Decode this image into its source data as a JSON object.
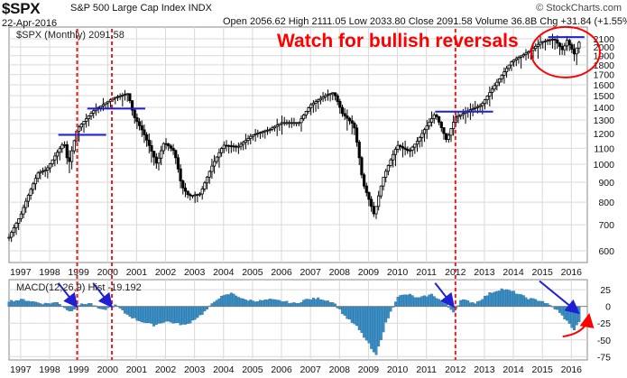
{
  "header": {
    "symbol": "$SPX",
    "index_name": "S&P 500 Large Cap Index INDX",
    "date": "22-Apr-2016",
    "quote": "Open 2056.62  High 2111.05  Low 2033.80  Close 2091.58  Volume 36.8B  Chg +31.84 (+1.55%) ▲",
    "watermark": "© StockCharts.com"
  },
  "legend": {
    "price": "$SPX (Monthly) 2091.58",
    "macd": "MACD(12,26,9) Hist -19.192"
  },
  "annotation": "Watch for bullish reversals",
  "colors": {
    "background": "#ffffff",
    "grid": "#d9d9d9",
    "candle": "#000000",
    "histogram": "#3b8fc4",
    "annotation": "#ff0000",
    "markers": "#1f1fd6",
    "reversal_lines": "#e02020"
  },
  "chart_data": [
    {
      "type": "candlestick",
      "title": "$SPX (Monthly) 2091.58",
      "yscale": "log",
      "ylim": [
        560,
        2250
      ],
      "yticks": [
        600,
        700,
        800,
        900,
        1000,
        1100,
        1200,
        1300,
        1400,
        1500,
        1600,
        1700,
        1800,
        1900,
        2000,
        2100
      ],
      "xlim": [
        1996.6,
        2016.55
      ],
      "xticks": [
        "1997",
        "1998",
        "1999",
        "2000",
        "2001",
        "2002",
        "2003",
        "2004",
        "2005",
        "2006",
        "2007",
        "2008",
        "2009",
        "2010",
        "2011",
        "2012",
        "2013",
        "2014",
        "2015",
        "2016"
      ],
      "path": [
        [
          1996.6,
          650
        ],
        [
          1997.0,
          740
        ],
        [
          1997.6,
          950
        ],
        [
          1997.9,
          970
        ],
        [
          1998.5,
          1140
        ],
        [
          1998.65,
          990
        ],
        [
          1998.95,
          1230
        ],
        [
          1999.5,
          1370
        ],
        [
          2000.2,
          1480
        ],
        [
          2000.7,
          1520
        ],
        [
          2000.9,
          1330
        ],
        [
          2001.2,
          1220
        ],
        [
          2001.7,
          1000
        ],
        [
          2001.95,
          1140
        ],
        [
          2002.3,
          1080
        ],
        [
          2002.55,
          880
        ],
        [
          2002.8,
          830
        ],
        [
          2003.2,
          840
        ],
        [
          2003.6,
          990
        ],
        [
          2004.0,
          1120
        ],
        [
          2004.5,
          1110
        ],
        [
          2005.0,
          1190
        ],
        [
          2005.6,
          1230
        ],
        [
          2006.0,
          1280
        ],
        [
          2006.6,
          1280
        ],
        [
          2007.0,
          1420
        ],
        [
          2007.5,
          1500
        ],
        [
          2007.8,
          1530
        ],
        [
          2008.1,
          1350
        ],
        [
          2008.5,
          1260
        ],
        [
          2008.8,
          900
        ],
        [
          2009.2,
          740
        ],
        [
          2009.5,
          920
        ],
        [
          2010.0,
          1120
        ],
        [
          2010.4,
          1080
        ],
        [
          2010.7,
          1150
        ],
        [
          2011.3,
          1350
        ],
        [
          2011.7,
          1150
        ],
        [
          2012.0,
          1320
        ],
        [
          2012.5,
          1380
        ],
        [
          2012.9,
          1420
        ],
        [
          2013.5,
          1650
        ],
        [
          2013.95,
          1840
        ],
        [
          2014.6,
          1960
        ],
        [
          2014.95,
          2060
        ],
        [
          2015.4,
          2100
        ],
        [
          2015.7,
          1960
        ],
        [
          2015.85,
          2080
        ],
        [
          2016.1,
          1920
        ],
        [
          2016.31,
          2091.58
        ]
      ],
      "annotations": {
        "reversal_lines_x": [
          1998.95,
          2000.15,
          2012.0
        ],
        "horizontal_levels": [
          {
            "x": [
              1998.3,
              1999.95
            ],
            "y": 1190
          },
          {
            "x": [
              1999.3,
              2001.3
            ],
            "y": 1390
          },
          {
            "x": [
              2011.3,
              2013.3
            ],
            "y": 1365
          },
          {
            "x": [
              2015.2,
              2016.45
            ],
            "y": 2120
          }
        ],
        "circle_center": {
          "x": 2015.8,
          "y": 1940
        }
      }
    },
    {
      "type": "bar",
      "title": "MACD(12,26,9) Hist -19.192",
      "ylim": [
        -80,
        40
      ],
      "yticks": [
        25,
        0,
        -25,
        -50,
        -75
      ],
      "xlim": [
        1996.6,
        2016.55
      ],
      "xticks": [
        "1997",
        "1998",
        "1999",
        "2000",
        "2001",
        "2002",
        "2003",
        "2004",
        "2005",
        "2006",
        "2007",
        "2008",
        "2009",
        "2010",
        "2011",
        "2012",
        "2013",
        "2014",
        "2015",
        "2016"
      ],
      "series": [
        {
          "values": [
            [
              1996.6,
              8
            ],
            [
              1997.1,
              10
            ],
            [
              1997.8,
              4
            ],
            [
              1998.3,
              6
            ],
            [
              1998.7,
              -8
            ],
            [
              1999.0,
              2
            ],
            [
              1999.4,
              5
            ],
            [
              1999.8,
              -6
            ],
            [
              2000.3,
              2
            ],
            [
              2000.6,
              -10
            ],
            [
              2001.0,
              -20
            ],
            [
              2001.6,
              -28
            ],
            [
              2002.0,
              -22
            ],
            [
              2002.7,
              -28
            ],
            [
              2003.3,
              -10
            ],
            [
              2003.8,
              12
            ],
            [
              2004.3,
              20
            ],
            [
              2004.7,
              10
            ],
            [
              2005.2,
              8
            ],
            [
              2005.6,
              10
            ],
            [
              2006.0,
              8
            ],
            [
              2006.5,
              4
            ],
            [
              2006.8,
              10
            ],
            [
              2007.3,
              12
            ],
            [
              2007.8,
              6
            ],
            [
              2008.2,
              -15
            ],
            [
              2008.6,
              -30
            ],
            [
              2009.0,
              -55
            ],
            [
              2009.25,
              -75
            ],
            [
              2009.6,
              -25
            ],
            [
              2010.0,
              15
            ],
            [
              2010.4,
              18
            ],
            [
              2010.7,
              12
            ],
            [
              2011.2,
              18
            ],
            [
              2011.6,
              5
            ],
            [
              2011.95,
              -8
            ],
            [
              2012.2,
              10
            ],
            [
              2012.7,
              5
            ],
            [
              2013.2,
              20
            ],
            [
              2013.6,
              26
            ],
            [
              2014.0,
              22
            ],
            [
              2014.5,
              12
            ],
            [
              2015.0,
              8
            ],
            [
              2015.5,
              -5
            ],
            [
              2015.85,
              -22
            ],
            [
              2016.1,
              -35
            ],
            [
              2016.31,
              -19.2
            ]
          ]
        }
      ]
    }
  ]
}
